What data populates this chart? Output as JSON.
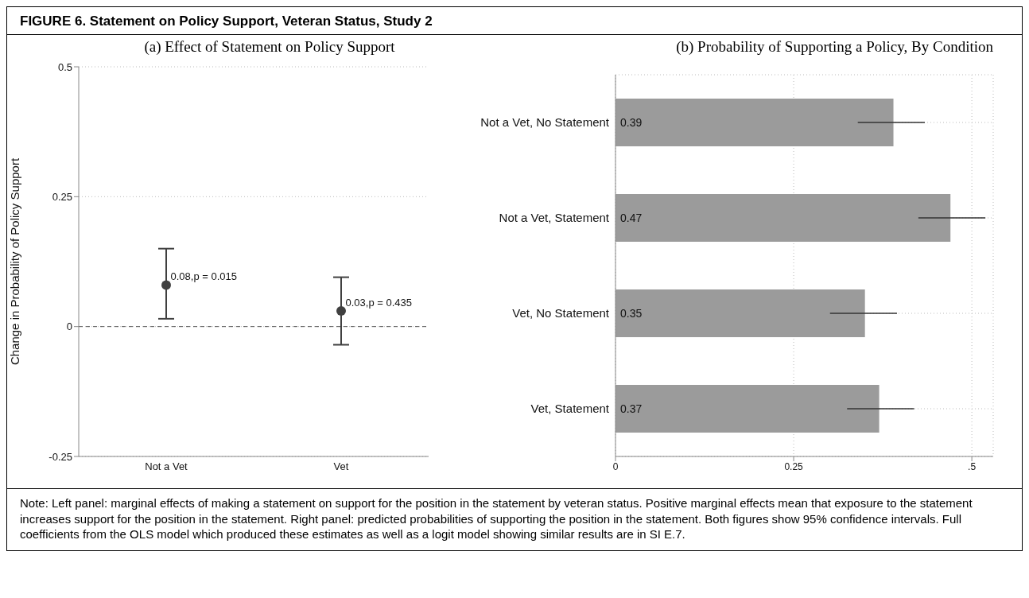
{
  "chart_data": [
    {
      "type": "scatter",
      "title": "FIGURE 6. Statement on Policy Support, Veteran Status, Study 2",
      "subtitle": "(a) Effect of Statement on Policy Support",
      "ylabel": "Change in Probability of Policy Support",
      "categories": [
        "Not a Vet",
        "Vet"
      ],
      "values": [
        0.08,
        0.03
      ],
      "errors": [
        [
          0.015,
          0.15
        ],
        [
          -0.035,
          0.095
        ]
      ],
      "value_labels": [
        "0.08,p = 0.015",
        "0.03,p = 0.435"
      ],
      "color": "#404040",
      "marker": "circle",
      "ylim": [
        -0.25,
        0.5
      ],
      "yticks": [
        -0.25,
        0,
        0.25,
        0.5
      ],
      "grid": "y",
      "ref_lines": [
        {
          "axis": "y",
          "value": 0,
          "color": "#555555",
          "line_style": "dashed"
        }
      ]
    },
    {
      "type": "bar",
      "orientation": "horizontal",
      "title": "(b) Probability of Supporting a Policy, By Condition",
      "categories": [
        "Not a Vet, No Statement",
        "Not a Vet, Statement",
        "Vet, No Statement",
        "Vet, Statement"
      ],
      "values": [
        0.39,
        0.47,
        0.35,
        0.37
      ],
      "errors": [
        [
          0.34,
          0.434
        ],
        [
          0.425,
          0.519
        ],
        [
          0.301,
          0.395
        ],
        [
          0.325,
          0.419
        ]
      ],
      "color": "#9b9b9b",
      "data_labels": true,
      "xlim": [
        0,
        0.53
      ],
      "xticks": [
        0,
        0.25,
        {
          "value": 0.5,
          "label": ".5"
        }
      ],
      "grid": true,
      "annotations": [
        "Note: Left panel: marginal effects of making a statement on support for the position in the statement by veteran status. Positive marginal effects mean that exposure to the statement increases support for the position in the statement. Right panel: predicted probabilities of supporting the position in the statement. Both figures show 95% confidence intervals. Full coefficients from the OLS model which produced these estimates as well as a logit model showing similar results are in SI E.7."
      ]
    }
  ]
}
